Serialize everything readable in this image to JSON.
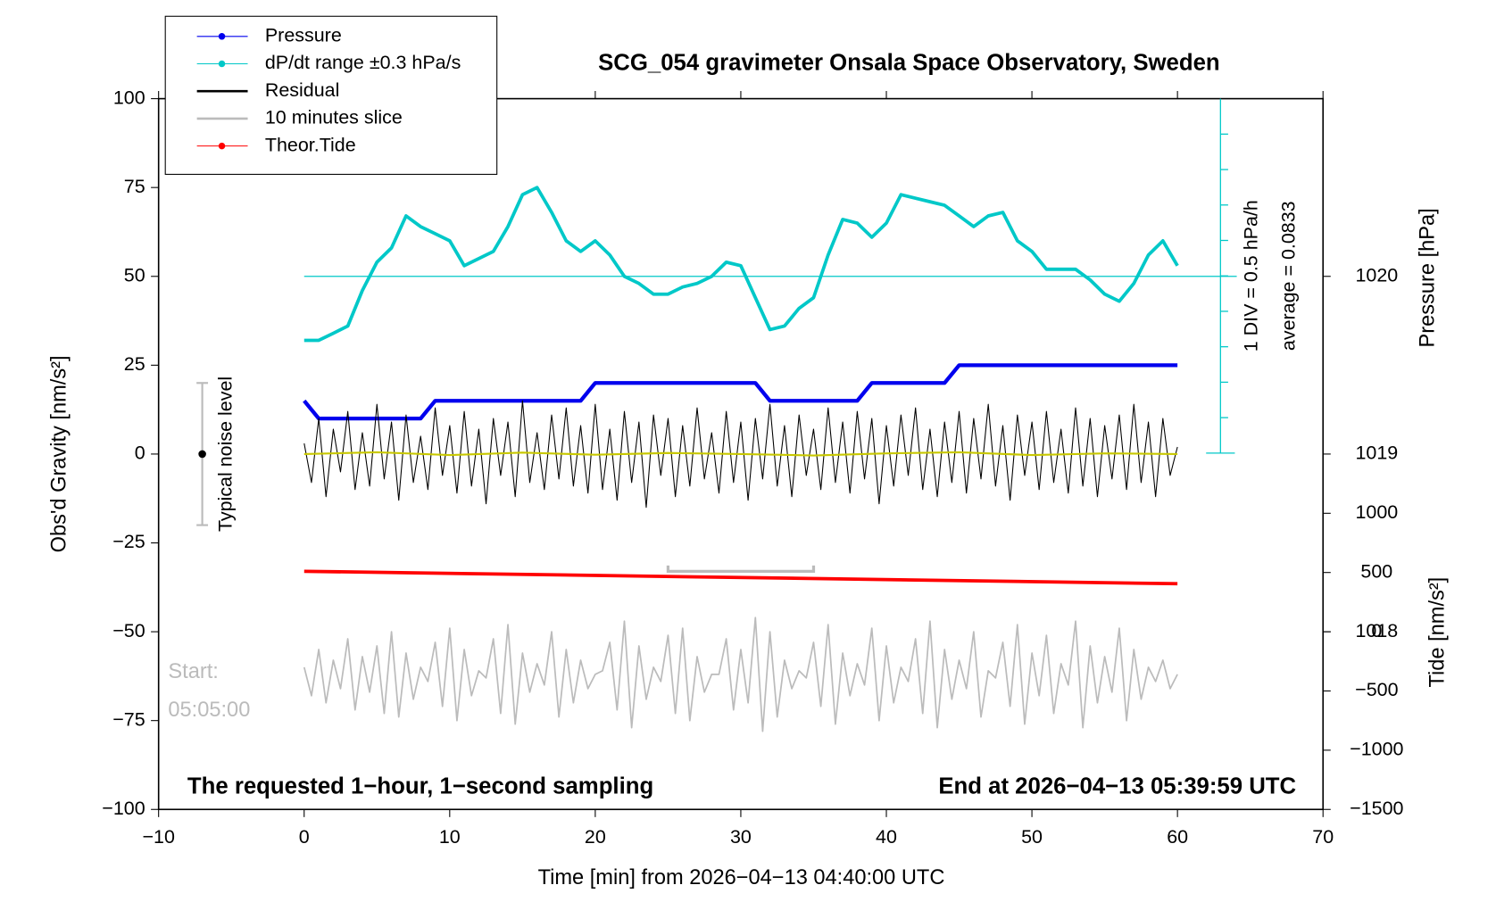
{
  "chart_data": {
    "type": "line",
    "title": "SCG_054 gravimeter Onsala Space Observatory, Sweden",
    "xlabel": "Time [min] from 2026−04−13 04:40:00 UTC",
    "ylabel": "Obs'd Gravity [nm/s²]",
    "y2label": "Pressure [hPa]",
    "y3label": "Tide [nm/s²]",
    "xlim": [
      -10,
      70
    ],
    "xticks": [
      {
        "value": -10,
        "label": "−10"
      },
      0,
      10,
      20,
      30,
      40,
      50,
      60,
      70
    ],
    "ylim": [
      -100,
      100
    ],
    "yticks": [
      {
        "value": -100,
        "label": "−100"
      },
      {
        "value": -75,
        "label": "−75"
      },
      {
        "value": -50,
        "label": "−50"
      },
      {
        "value": -25,
        "label": "−25"
      },
      0,
      25,
      50,
      75,
      100
    ],
    "y2lim": [
      1017,
      1021
    ],
    "y2ticks": [
      1018,
      1019,
      1020
    ],
    "y3lim": [
      -1500,
      4500
    ],
    "y3ticks": [
      {
        "value": -1500,
        "label": "−1500"
      },
      {
        "value": -1000,
        "label": "−1000"
      },
      {
        "value": -500,
        "label": "−500"
      },
      0,
      500,
      1000
    ],
    "series": [
      {
        "name": "Pressure",
        "color": "#0000ee",
        "marker": true,
        "axis": "y2",
        "width": 4,
        "x": [
          0,
          1,
          2,
          3,
          4,
          5,
          6,
          7,
          8,
          9,
          10,
          11,
          12,
          13,
          14,
          15,
          16,
          17,
          18,
          19,
          20,
          21,
          22,
          23,
          24,
          25,
          26,
          27,
          28,
          29,
          30,
          31,
          32,
          33,
          34,
          35,
          36,
          37,
          38,
          39,
          40,
          41,
          42,
          43,
          44,
          45,
          46,
          47,
          48,
          49,
          50,
          51,
          52,
          53,
          54,
          55,
          56,
          57,
          58,
          59,
          60
        ],
        "values": [
          1019.3,
          1019.2,
          1019.2,
          1019.2,
          1019.2,
          1019.2,
          1019.2,
          1019.2,
          1019.2,
          1019.3,
          1019.3,
          1019.3,
          1019.3,
          1019.3,
          1019.3,
          1019.3,
          1019.3,
          1019.3,
          1019.3,
          1019.3,
          1019.4,
          1019.4,
          1019.4,
          1019.4,
          1019.4,
          1019.4,
          1019.4,
          1019.4,
          1019.4,
          1019.4,
          1019.4,
          1019.4,
          1019.3,
          1019.3,
          1019.3,
          1019.3,
          1019.3,
          1019.3,
          1019.3,
          1019.4,
          1019.4,
          1019.4,
          1019.4,
          1019.4,
          1019.4,
          1019.5,
          1019.5,
          1019.5,
          1019.5,
          1019.5,
          1019.5,
          1019.5,
          1019.5,
          1019.5,
          1019.5,
          1019.5,
          1019.5,
          1019.5,
          1019.5,
          1019.5,
          1019.5
        ]
      },
      {
        "name": "dP/dt range ±0.3 hPa/s",
        "color": "#00c8c8",
        "marker": true,
        "width": 3.5,
        "baseline": 50,
        "x": [
          0,
          1,
          2,
          3,
          4,
          5,
          6,
          7,
          8,
          9,
          10,
          11,
          12,
          13,
          14,
          15,
          16,
          17,
          18,
          19,
          20,
          21,
          22,
          23,
          24,
          25,
          26,
          27,
          28,
          29,
          30,
          31,
          32,
          33,
          34,
          35,
          36,
          37,
          38,
          39,
          40,
          41,
          42,
          43,
          44,
          45,
          46,
          47,
          48,
          49,
          50,
          51,
          52,
          53,
          54,
          55,
          56,
          57,
          58,
          59,
          60
        ],
        "values": [
          32,
          32,
          34,
          36,
          46,
          54,
          58,
          67,
          64,
          62,
          60,
          53,
          55,
          57,
          64,
          73,
          75,
          68,
          60,
          57,
          60,
          56,
          50,
          48,
          45,
          45,
          47,
          48,
          50,
          54,
          53,
          44,
          35,
          36,
          41,
          44,
          56,
          66,
          65,
          61,
          65,
          73,
          72,
          71,
          70,
          67,
          64,
          67,
          68,
          60,
          57,
          52,
          52,
          52,
          49,
          45,
          43,
          48,
          56,
          60,
          53
        ]
      },
      {
        "name": "Residual",
        "color": "#000000",
        "marker": false,
        "width": 1,
        "x": [
          0,
          0.5,
          1,
          1.5,
          2,
          2.5,
          3,
          3.5,
          4,
          4.5,
          5,
          5.5,
          6,
          6.5,
          7,
          7.5,
          8,
          8.5,
          9,
          9.5,
          10,
          10.5,
          11,
          11.5,
          12,
          12.5,
          13,
          13.5,
          14,
          14.5,
          15,
          15.5,
          16,
          16.5,
          17,
          17.5,
          18,
          18.5,
          19,
          19.5,
          20,
          20.5,
          21,
          21.5,
          22,
          22.5,
          23,
          23.5,
          24,
          24.5,
          25,
          25.5,
          26,
          26.5,
          27,
          27.5,
          28,
          28.5,
          29,
          29.5,
          30,
          30.5,
          31,
          31.5,
          32,
          32.5,
          33,
          33.5,
          34,
          34.5,
          35,
          35.5,
          36,
          36.5,
          37,
          37.5,
          38,
          38.5,
          39,
          39.5,
          40,
          40.5,
          41,
          41.5,
          42,
          42.5,
          43,
          43.5,
          44,
          44.5,
          45,
          45.5,
          46,
          46.5,
          47,
          47.5,
          48,
          48.5,
          49,
          49.5,
          50,
          50.5,
          51,
          51.5,
          52,
          52.5,
          53,
          53.5,
          54,
          54.5,
          55,
          55.5,
          56,
          56.5,
          57,
          57.5,
          58,
          58.5,
          59,
          59.5,
          60
        ],
        "values": [
          3,
          -8,
          10,
          -12,
          7,
          -5,
          12,
          -10,
          6,
          -9,
          14,
          -7,
          9,
          -13,
          11,
          -8,
          5,
          -10,
          13,
          -6,
          8,
          -11,
          12,
          -9,
          7,
          -14,
          10,
          -6,
          9,
          -12,
          15,
          -8,
          6,
          -10,
          11,
          -7,
          13,
          -9,
          8,
          -11,
          14,
          -10,
          7,
          -13,
          12,
          -8,
          9,
          -15,
          11,
          -6,
          10,
          -12,
          8,
          -9,
          13,
          -7,
          6,
          -11,
          12,
          -8,
          9,
          -13,
          10,
          -7,
          14,
          -9,
          8,
          -12,
          11,
          -6,
          7,
          -10,
          13,
          -8,
          9,
          -11,
          12,
          -7,
          10,
          -14,
          8,
          -9,
          11,
          -6,
          13,
          -10,
          7,
          -12,
          9,
          -8,
          12,
          -11,
          10,
          -7,
          14,
          -9,
          8,
          -13,
          11,
          -6,
          9,
          -10,
          12,
          -8,
          7,
          -11,
          13,
          -9,
          10,
          -12,
          8,
          -7,
          11,
          -10,
          14,
          -8,
          9,
          -12,
          10,
          -6,
          2
        ]
      },
      {
        "color": "#c8c800",
        "marker": false,
        "width": 2,
        "x": [
          0,
          5,
          10,
          15,
          20,
          25,
          30,
          35,
          40,
          45,
          50,
          55,
          60
        ],
        "values": [
          0,
          0.5,
          -0.3,
          0.4,
          -0.2,
          0.3,
          0,
          -0.4,
          0.2,
          0.5,
          -0.3,
          0.2,
          0
        ]
      },
      {
        "name": "10 minutes slice",
        "color": "#bbbbbb",
        "marker": false,
        "width": 1.6,
        "x": [
          0,
          0.5,
          1,
          1.5,
          2,
          2.5,
          3,
          3.5,
          4,
          4.5,
          5,
          5.5,
          6,
          6.5,
          7,
          7.5,
          8,
          8.5,
          9,
          9.5,
          10,
          10.5,
          11,
          11.5,
          12,
          12.5,
          13,
          13.5,
          14,
          14.5,
          15,
          15.5,
          16,
          16.5,
          17,
          17.5,
          18,
          18.5,
          19,
          19.5,
          20,
          20.5,
          21,
          21.5,
          22,
          22.5,
          23,
          23.5,
          24,
          24.5,
          25,
          25.5,
          26,
          26.5,
          27,
          27.5,
          28,
          28.5,
          29,
          29.5,
          30,
          30.5,
          31,
          31.5,
          32,
          32.5,
          33,
          33.5,
          34,
          34.5,
          35,
          35.5,
          36,
          36.5,
          37,
          37.5,
          38,
          38.5,
          39,
          39.5,
          40,
          40.5,
          41,
          41.5,
          42,
          42.5,
          43,
          43.5,
          44,
          44.5,
          45,
          45.5,
          46,
          46.5,
          47,
          47.5,
          48,
          48.5,
          49,
          49.5,
          50,
          50.5,
          51,
          51.5,
          52,
          52.5,
          53,
          53.5,
          54,
          54.5,
          55,
          55.5,
          56,
          56.5,
          57,
          57.5,
          58,
          58.5,
          59,
          59.5,
          60
        ],
        "values": [
          -60,
          -68,
          -55,
          -70,
          -58,
          -66,
          -52,
          -72,
          -57,
          -67,
          -54,
          -73,
          -50,
          -74,
          -56,
          -69,
          -60,
          -64,
          -53,
          -71,
          -49,
          -75,
          -55,
          -68,
          -61,
          -63,
          -52,
          -73,
          -48,
          -76,
          -56,
          -67,
          -59,
          -65,
          -50,
          -74,
          -55,
          -70,
          -58,
          -66,
          -62,
          -61,
          -53,
          -72,
          -47,
          -77,
          -54,
          -69,
          -60,
          -64,
          -51,
          -73,
          -49,
          -75,
          -57,
          -67,
          -62,
          -62,
          -52,
          -72,
          -55,
          -70,
          -46,
          -78,
          -50,
          -74,
          -58,
          -66,
          -61,
          -63,
          -53,
          -71,
          -48,
          -76,
          -56,
          -68,
          -59,
          -65,
          -49,
          -75,
          -54,
          -70,
          -60,
          -64,
          -52,
          -73,
          -47,
          -77,
          -55,
          -69,
          -58,
          -66,
          -50,
          -74,
          -61,
          -63,
          -53,
          -71,
          -48,
          -76,
          -56,
          -68,
          -51,
          -73,
          -59,
          -65,
          -47,
          -77,
          -54,
          -70,
          -57,
          -67,
          -49,
          -75,
          -55,
          -69,
          -60,
          -64,
          -58,
          -66,
          -62
        ]
      },
      {
        "name": "Theor.Tide",
        "color": "#ff0000",
        "marker": true,
        "axis": "y3",
        "width": 3.5,
        "x": [
          0,
          60
        ],
        "values": [
          510,
          405
        ]
      }
    ],
    "noise_bar": {
      "label": "Typical noise level",
      "x": -7,
      "value": 0,
      "error": 20
    },
    "slice_bracket": {
      "x": [
        25,
        35
      ],
      "value": -33
    },
    "annotations": {
      "start": "Start:",
      "start_time": "05:05:00",
      "footer_left": "The requested 1−hour, 1−second sampling",
      "footer_right": "End at 2026−04−13 05:39:59 UTC",
      "scale": "1 DIV = 0.5 hPa/h",
      "average": "average = 0.0833"
    },
    "legend": "upper left"
  }
}
